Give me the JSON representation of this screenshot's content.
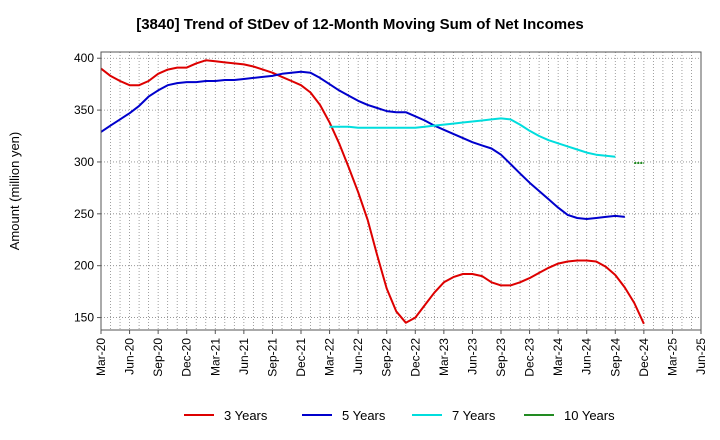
{
  "chart_data": {
    "type": "line",
    "title": "[3840]  Trend of StDev of 12-Month Moving Sum of Net Incomes",
    "xlabel": "",
    "ylabel": "Amount (million yen)",
    "ylim": [
      138,
      406
    ],
    "y_ticks": [
      150,
      200,
      250,
      300,
      350,
      400
    ],
    "x_ticks": [
      "Mar-20",
      "Jun-20",
      "Sep-20",
      "Dec-20",
      "Mar-21",
      "Jun-21",
      "Sep-21",
      "Dec-21",
      "Mar-22",
      "Jun-22",
      "Sep-22",
      "Dec-22",
      "Mar-23",
      "Jun-23",
      "Sep-23",
      "Dec-23",
      "Mar-24",
      "Jun-24",
      "Sep-24",
      "Dec-24",
      "Mar-25",
      "Jun-25"
    ],
    "grid": true,
    "legend_position": "bottom",
    "series": [
      {
        "name": "3 Years",
        "color": "#dd0000",
        "start_index": 0,
        "values": [
          390,
          383,
          378,
          374,
          374,
          378,
          385,
          389,
          391,
          391,
          395,
          398,
          397,
          396,
          395,
          394,
          392,
          389,
          386,
          382,
          378,
          374,
          367,
          355,
          338,
          318,
          295,
          271,
          244,
          210,
          178,
          156,
          145,
          150,
          162,
          174,
          184,
          189,
          192,
          192,
          190,
          184,
          181,
          181,
          184,
          188,
          193,
          198,
          202,
          204,
          205,
          205,
          204,
          199,
          191,
          179,
          164,
          144
        ]
      },
      {
        "name": "5 Years",
        "color": "#0000cc",
        "start_index": 0,
        "values": [
          329,
          335,
          341,
          347,
          354,
          363,
          369,
          374,
          376,
          377,
          377,
          378,
          378,
          379,
          379,
          380,
          381,
          382,
          383,
          385,
          386,
          387,
          386,
          381,
          375,
          369,
          364,
          359,
          355,
          352,
          349,
          348,
          348,
          344,
          340,
          335,
          331,
          327,
          323,
          319,
          316,
          313,
          307,
          298,
          289,
          280,
          272,
          264,
          256,
          249,
          246,
          245,
          246,
          247,
          248,
          247
        ]
      },
      {
        "name": "7 Years",
        "color": "#00dddd",
        "start_index": 24,
        "values": [
          334,
          334,
          334,
          333,
          333,
          333,
          333,
          333,
          333,
          333,
          334,
          335,
          336,
          337,
          338,
          339,
          340,
          341,
          342,
          341,
          336,
          330,
          325,
          321,
          318,
          315,
          312,
          309,
          307,
          306,
          305
        ]
      },
      {
        "name": "10 Years",
        "color": "#228b22",
        "start_index": 56,
        "values": [
          299,
          299
        ]
      }
    ]
  }
}
